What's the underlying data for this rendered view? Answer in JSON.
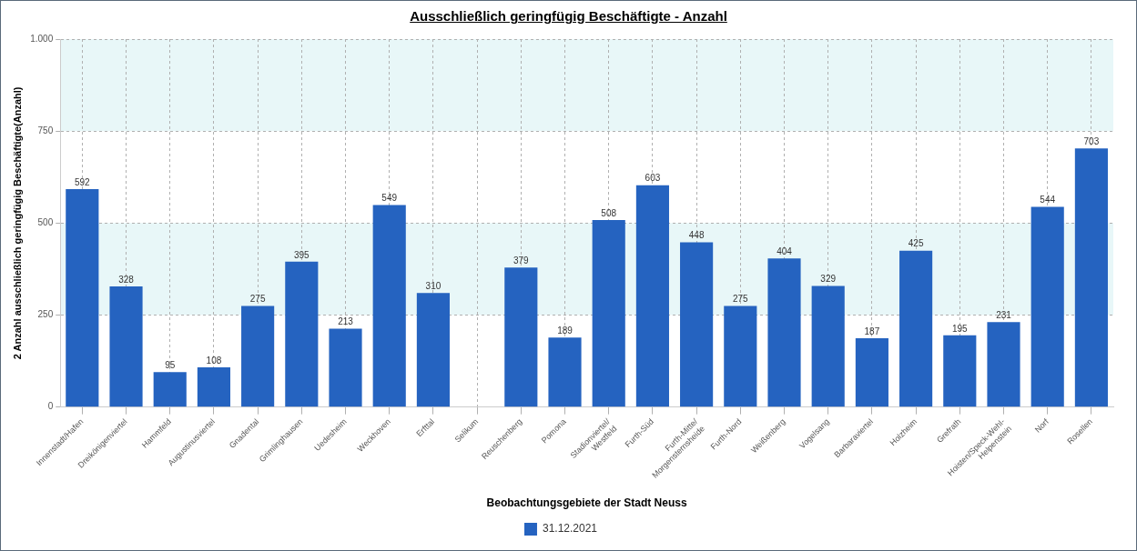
{
  "chart_data": {
    "type": "bar",
    "title": "Ausschließlich geringfügig Beschäftigte - Anzahl",
    "xlabel": "Beobachtungsgebiete der Stadt Neuss",
    "ylabel": "2 Anzahl ausschließlich geringfügig Beschäftigte(Anzahl)",
    "categories": [
      "Innenstadt/Hafen",
      "Dreikönigenviertel",
      "Hammfeld",
      "Augustinusviertel",
      "Gnadental",
      "Grimlinghausen",
      "Uedesheim",
      "Weckhoven",
      "Erfttal",
      "Selikum",
      "Reuschenberg",
      "Pomona",
      "Stadionviertel/\nWestfeld",
      "Furth-Süd",
      "Furth-Mitte/\nMorgensternsheide",
      "Furth-Nord",
      "Weißenberg",
      "Vogelsang",
      "Barbaraviertel",
      "Holzheim",
      "Grefrath",
      "Hoisten/Speck-Wehl-\nHelpenstein",
      "Norf",
      "Rosellen"
    ],
    "series": [
      {
        "name": "31.12.2021",
        "color": "#2563c0",
        "values": [
          592,
          328,
          95,
          108,
          275,
          395,
          213,
          549,
          310,
          null,
          379,
          189,
          508,
          603,
          448,
          275,
          404,
          329,
          187,
          425,
          195,
          231,
          544,
          703
        ]
      }
    ],
    "ylim": [
      0,
      1000
    ],
    "yticks": [
      0,
      250,
      500,
      750,
      {
        "value": 1000,
        "label": "1.000"
      }
    ],
    "bands": [
      {
        "axis": "y",
        "from": 250,
        "to": 500,
        "color": "#e8f7f8"
      },
      {
        "axis": "y",
        "from": 750,
        "to": 1000,
        "color": "#e8f7f8"
      }
    ],
    "grid": true,
    "legend": "bottom",
    "data_labels": true
  }
}
